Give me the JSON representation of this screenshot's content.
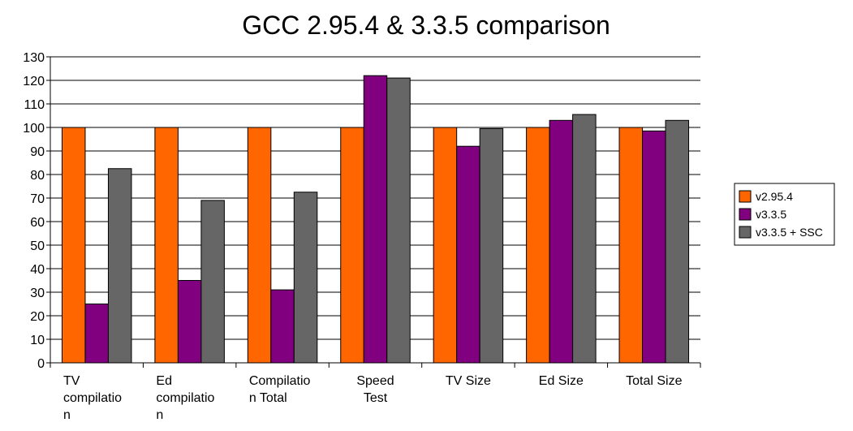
{
  "chart_data": {
    "type": "bar",
    "title": "GCC 2.95.4 & 3.3.5 comparison",
    "xlabel": "",
    "ylabel": "",
    "ylim": [
      0,
      130
    ],
    "ytick_step": 10,
    "grid": true,
    "legend_position": "right",
    "categories": [
      [
        "TV",
        "compilatio",
        "n"
      ],
      [
        "Ed",
        "compilatio",
        "n"
      ],
      [
        "Compilatio",
        "n Total"
      ],
      [
        "Speed",
        "Test"
      ],
      [
        "TV Size"
      ],
      [
        "Ed Size"
      ],
      [
        "Total Size"
      ]
    ],
    "series": [
      {
        "name": "v2.95.4",
        "color": "#ff6600",
        "values": [
          100,
          100,
          100,
          100,
          100,
          100,
          100
        ]
      },
      {
        "name": "v3.3.5",
        "color": "#800080",
        "values": [
          25,
          35,
          31,
          122,
          92,
          103,
          98.5
        ]
      },
      {
        "name": "v3.3.5 + SSC",
        "color": "#666666",
        "values": [
          82.5,
          69,
          72.5,
          121,
          99.5,
          105.5,
          103
        ]
      }
    ]
  }
}
